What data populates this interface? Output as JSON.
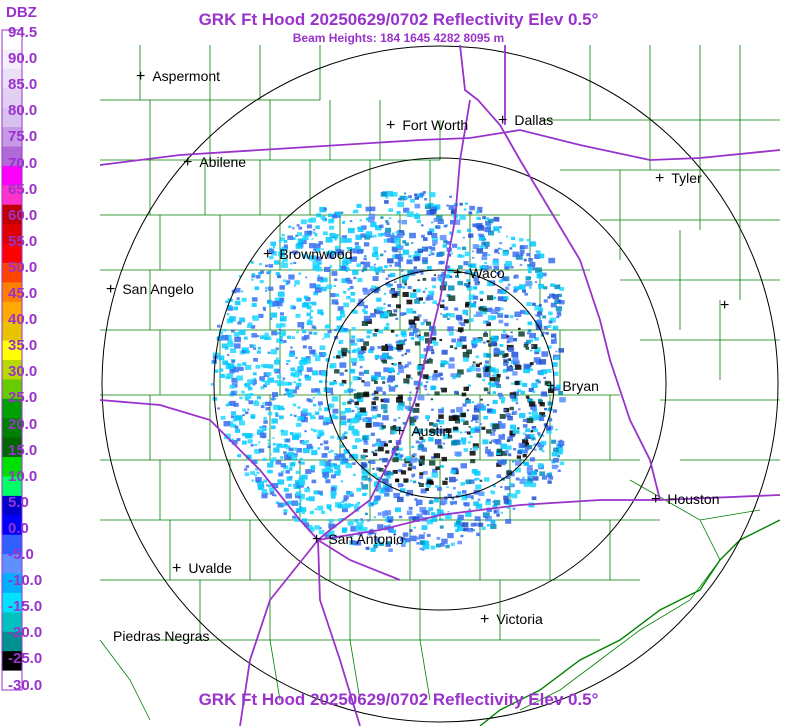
{
  "header": {
    "title": "GRK Ft Hood 20250629/0702 Reflectivity Elev 0.5°",
    "subtitle": "Beam Heights: 184 1645 4282 8095 m",
    "footer_title": "GRK Ft Hood 20250629/0702 Reflectivity Elev 0.5°"
  },
  "legend": {
    "unit": "DBZ",
    "labels": [
      "94.5",
      "90.0",
      "85.0",
      "80.0",
      "75.0",
      "70.0",
      "65.0",
      "60.0",
      "55.0",
      "50.0",
      "45.0",
      "40.0",
      "35.0",
      "30.0",
      "25.0",
      "20.0",
      "15.0",
      "10.0",
      "5.0",
      "0.0",
      "-5.0",
      "-10.0",
      "-15.0",
      "-20.0",
      "-25.0",
      "-30.0"
    ],
    "colors": [
      "#ffffff",
      "#f5eefb",
      "#ece0f7",
      "#e2d0f2",
      "#d7c1ee",
      "#c699e6",
      "#b06ad8",
      "#ff00ff",
      "#ff33cc",
      "#c00000",
      "#e00000",
      "#ff0000",
      "#ff4400",
      "#ff7f00",
      "#ffaa00",
      "#e8c400",
      "#ffff00",
      "#b8d800",
      "#66cc00",
      "#00a000",
      "#008000",
      "#006600",
      "#00e000",
      "#00ff66",
      "#0000cc",
      "#0000ff",
      "#3060ff",
      "#6090ff",
      "#00b0ff",
      "#00e0ff",
      "#00c0c0",
      "#009090",
      "#000000",
      "#ffffff"
    ]
  },
  "cities": [
    {
      "name": "Aspermont"
    },
    {
      "name": "Fort Worth"
    },
    {
      "name": "Dallas"
    },
    {
      "name": "Abilene"
    },
    {
      "name": "Tyler"
    },
    {
      "name": "Brownwood"
    },
    {
      "name": "Waco"
    },
    {
      "name": "San Angelo"
    },
    {
      "name": "Bryan"
    },
    {
      "name": "Austin"
    },
    {
      "name": "Houston"
    },
    {
      "name": "San Antonio"
    },
    {
      "name": "Uvalde"
    },
    {
      "name": "Victoria"
    },
    {
      "name": "Piedras Negras"
    },
    {
      "name": ""
    }
  ],
  "colors": {
    "title": "#9933cc",
    "county_lines": "#008000",
    "highways": "#9933cc",
    "range_rings": "#000000",
    "echo_primary": "#00c8ff",
    "echo_secondary": "#3a6ff0"
  }
}
